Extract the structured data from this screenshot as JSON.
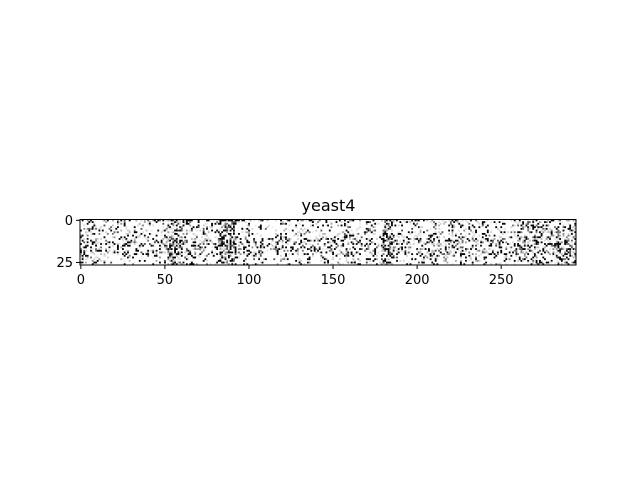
{
  "chart_data": {
    "type": "heatmap",
    "title": "yeast4",
    "xlabel": "",
    "ylabel": "",
    "n_cols": 295,
    "n_rows": 27,
    "xlim": [
      -0.5,
      294.5
    ],
    "ylim": [
      26.5,
      -0.5
    ],
    "x_ticks": [
      0,
      50,
      100,
      150,
      200,
      250
    ],
    "y_ticks": [
      0,
      25
    ],
    "colormap": "grayscale (white = low, black = high)",
    "grid": false
  }
}
